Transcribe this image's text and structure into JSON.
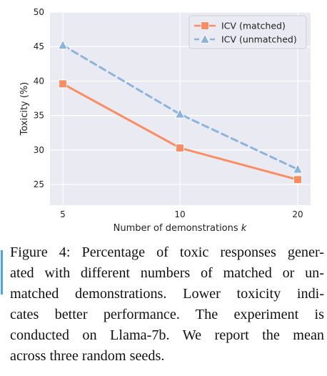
{
  "chart_data": {
    "type": "line",
    "x": [
      5,
      10,
      20
    ],
    "xticks": [
      "5",
      "10",
      "20"
    ],
    "xlabel": "Number of demonstrations k",
    "xlabel_prefix": "Number of demonstrations ",
    "xlabel_var": "k",
    "ylabel": "Toxicity (%)",
    "ylim": [
      22,
      50
    ],
    "yticks": [
      25,
      30,
      35,
      40,
      45,
      50
    ],
    "grid": true,
    "legend_position": "top-right",
    "series": [
      {
        "name": "ICV (matched)",
        "values": [
          39.6,
          30.3,
          25.7
        ],
        "color": "#fc8d62",
        "linestyle": "solid",
        "marker": "square"
      },
      {
        "name": "ICV (unmatched)",
        "values": [
          45.2,
          35.2,
          27.2
        ],
        "color": "#8db4dc",
        "linestyle": "dashed",
        "marker": "triangle"
      }
    ]
  },
  "caption": {
    "lines": [
      "Figure 4: Percentage of toxic responses gener-",
      "ated with different numbers of matched or un-",
      "matched demonstrations. Lower toxicity indi-",
      "cates better performance. The experiment is",
      "conducted on Llama-7b. We report the mean",
      "across three random seeds."
    ]
  },
  "colors": {
    "plot_background": "#eaeaf2",
    "grid": "#ffffff",
    "change_bar": "#4da3e6"
  }
}
